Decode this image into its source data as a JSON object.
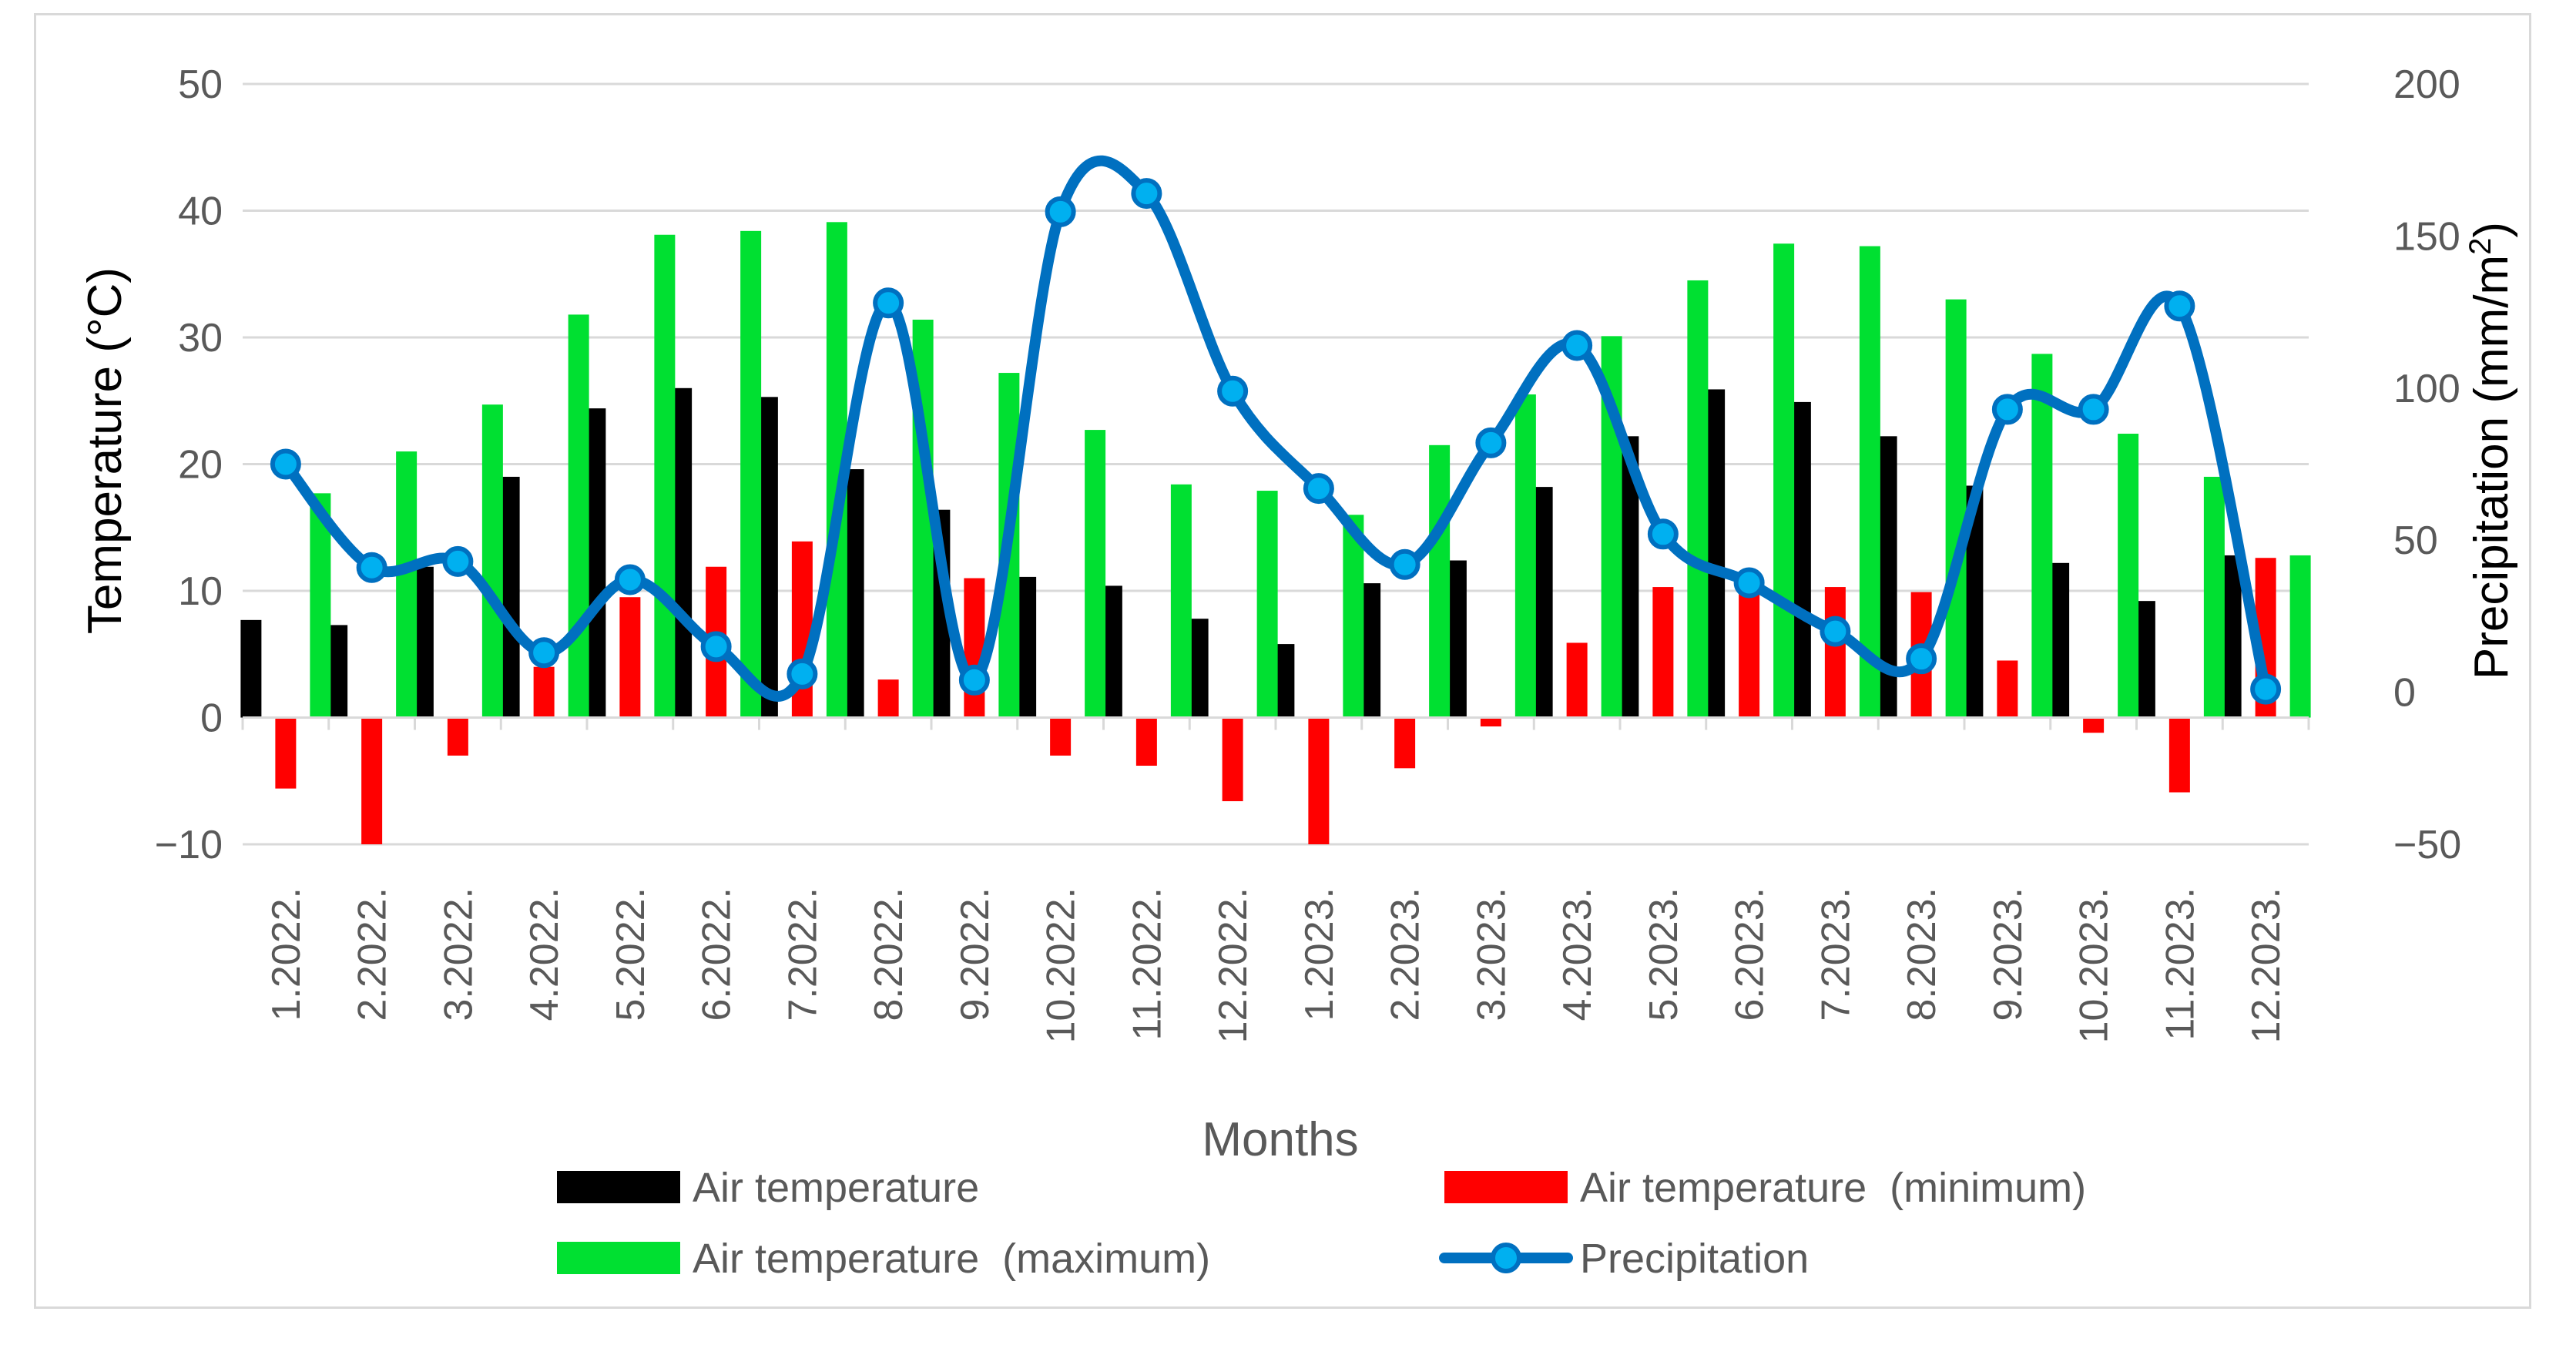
{
  "chart_data": {
    "type": "bar",
    "categories": [
      "1.2022.",
      "2.2022.",
      "3.2022.",
      "4.2022.",
      "5.2022.",
      "6.2022.",
      "7.2022.",
      "8.2022.",
      "9.2022.",
      "10.2022.",
      "11.2022.",
      "12.2022.",
      "1.2023.",
      "2.2023.",
      "3.2023.",
      "4.2023.",
      "5.2023.",
      "6.2023.",
      "7.2023.",
      "8.2023.",
      "9.2023.",
      "10.2023.",
      "11.2023.",
      "12.2023."
    ],
    "series": [
      {
        "name": "Air temperature",
        "kind": "bar",
        "axis": "left",
        "color": "#000000",
        "values": [
          7.7,
          7.3,
          11.9,
          19.0,
          24.4,
          26.0,
          25.3,
          19.6,
          16.4,
          11.1,
          10.4,
          7.8,
          5.8,
          10.6,
          12.4,
          18.2,
          22.2,
          25.9,
          24.9,
          22.2,
          18.3,
          12.2,
          9.2,
          12.8
        ]
      },
      {
        "name": "Air temperature  (minimum)",
        "kind": "bar",
        "axis": "left",
        "color": "#ff0000",
        "values": [
          -5.6,
          -10.0,
          -3.0,
          4.0,
          9.5,
          11.9,
          13.9,
          3.0,
          11.0,
          -3.0,
          -3.8,
          -6.6,
          -10.0,
          -4.0,
          -0.7,
          5.9,
          10.3,
          10.4,
          10.3,
          9.9,
          4.5,
          -1.2,
          -5.9,
          12.6
        ]
      },
      {
        "name": "Air temperature  (maximum)",
        "kind": "bar",
        "axis": "left",
        "color": "#00e031",
        "values": [
          17.7,
          21.0,
          24.7,
          31.8,
          38.1,
          38.4,
          39.1,
          31.4,
          27.2,
          22.7,
          18.4,
          17.9,
          16.0,
          21.5,
          25.5,
          30.1,
          34.5,
          37.4,
          37.2,
          33.0,
          28.7,
          22.4,
          19.0,
          12.8
        ]
      },
      {
        "name": "Precipitation",
        "kind": "line",
        "axis": "right",
        "color": "#0070c0",
        "values": [
          75,
          41,
          43,
          13,
          37,
          15,
          6,
          128,
          4,
          158,
          164,
          99,
          67,
          42,
          82,
          114,
          52,
          36,
          20,
          11,
          93,
          93,
          127,
          1
        ]
      }
    ],
    "title": "",
    "xlabel": "Months",
    "ylabel": "Temperature (°C)",
    "y2label_prefix": "Precipitation (mm/m",
    "y2label_sup": "2",
    "y2label_suffix": ")",
    "ylim": [
      -10,
      50
    ],
    "y2lim": [
      -50,
      200
    ],
    "yticks": [
      -10,
      0,
      10,
      20,
      30,
      40,
      50
    ],
    "y2ticks": [
      -50,
      0,
      50,
      100,
      150,
      200
    ],
    "ytick_labels": [
      "−10",
      "0",
      "10",
      "20",
      "30",
      "40",
      "50"
    ],
    "y2tick_labels": [
      "−50",
      "0",
      "50",
      "100",
      "150",
      "200"
    ],
    "grid": true,
    "legend": "bottom",
    "legend_marker_color": "#00b0f0"
  }
}
